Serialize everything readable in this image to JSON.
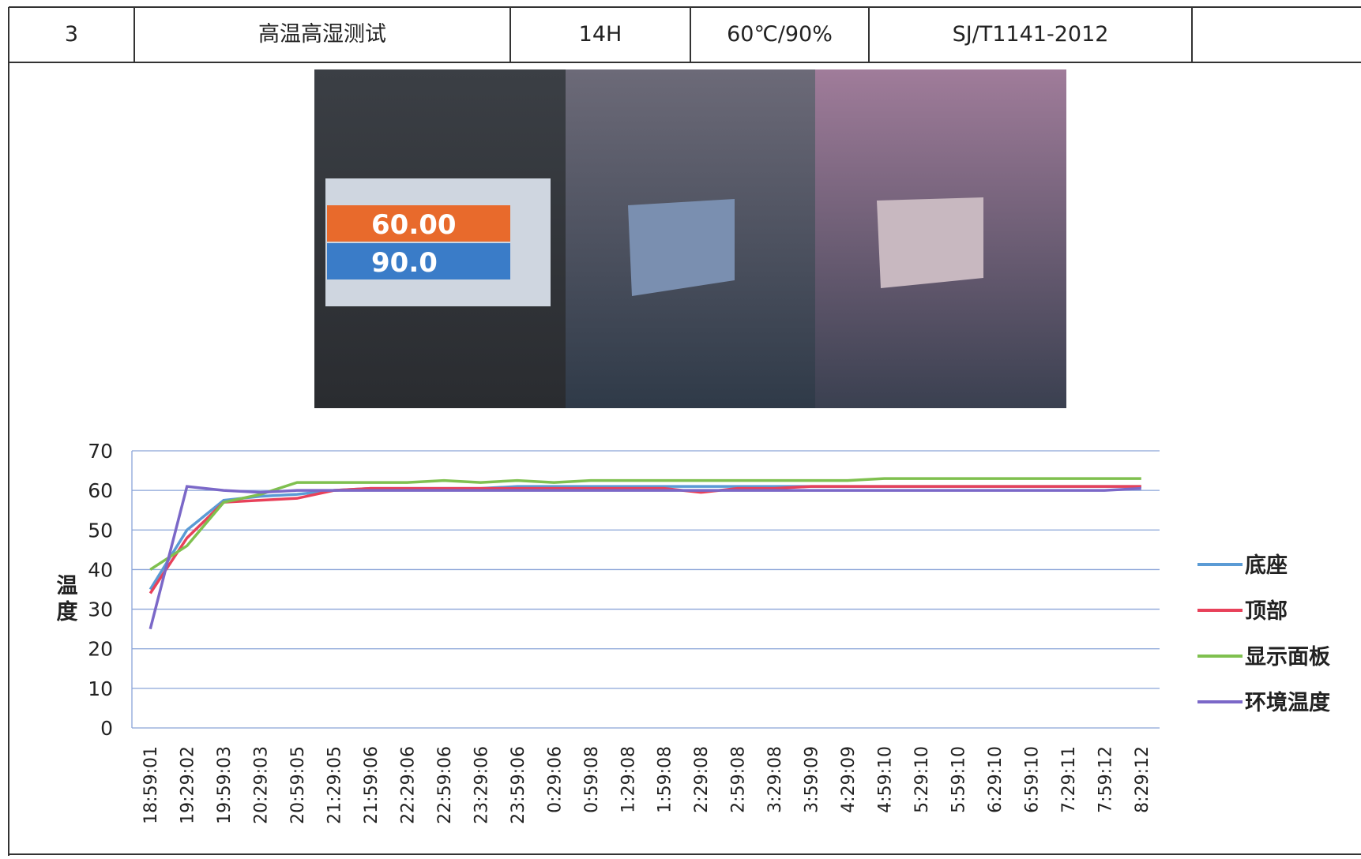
{
  "table": {
    "rows": [
      [
        "3",
        "高温高湿测试",
        "14H",
        "60℃/90%",
        "SJ/T1141-2012"
      ]
    ]
  },
  "photo": {
    "readings": [
      "60.00",
      "90.0"
    ]
  },
  "chart_data": {
    "type": "line",
    "y_label": "温度",
    "categories": [
      "18:59:01",
      "19:29:02",
      "19:59:03",
      "20:29:03",
      "20:59:05",
      "21:29:05",
      "21:59:06",
      "22:29:06",
      "22:59:06",
      "23:29:06",
      "23:59:06",
      "0:29:06",
      "0:59:08",
      "1:29:08",
      "1:59:08",
      "2:29:08",
      "2:59:08",
      "3:29:08",
      "3:59:09",
      "4:29:09",
      "4:59:10",
      "5:29:10",
      "5:59:10",
      "6:29:10",
      "6:59:10",
      "7:29:11",
      "7:59:12",
      "8:29:12"
    ],
    "series": [
      {
        "name": "底座",
        "color": "#5b9bd5",
        "values": [
          35,
          50,
          57.5,
          58.5,
          59,
          60,
          60.5,
          60.5,
          60.5,
          60.5,
          61,
          61,
          61,
          61,
          61,
          61,
          61,
          61,
          61,
          61,
          61,
          61,
          61,
          61,
          61,
          61,
          61,
          61
        ]
      },
      {
        "name": "顶部",
        "color": "#e8415a",
        "values": [
          34,
          48,
          57,
          57.5,
          58,
          60,
          60.5,
          60.5,
          60.5,
          60.5,
          60.5,
          60.5,
          60.5,
          60.5,
          60.5,
          59.5,
          60.5,
          60.5,
          61,
          61,
          61,
          61,
          61,
          61,
          61,
          61,
          61,
          61
        ]
      },
      {
        "name": "显示面板",
        "color": "#7fc04f",
        "values": [
          40,
          46,
          57,
          59,
          62,
          62,
          62,
          62,
          62.5,
          62,
          62.5,
          62,
          62.5,
          62.5,
          62.5,
          62.5,
          62.5,
          62.5,
          62.5,
          62.5,
          63,
          63,
          63,
          63,
          63,
          63,
          63,
          63
        ]
      },
      {
        "name": "环境温度",
        "color": "#7b68c8",
        "values": [
          25,
          61,
          60,
          59.5,
          60,
          60,
          60,
          60,
          60,
          60,
          60,
          60,
          60,
          60,
          60,
          60,
          60,
          60,
          60,
          60,
          60,
          60,
          60,
          60,
          60,
          60,
          60,
          60.5
        ]
      }
    ],
    "ylim": [
      0,
      70
    ],
    "yticks": [
      0,
      10,
      20,
      30,
      40,
      50,
      60,
      70
    ],
    "grid": true,
    "legend": "right"
  }
}
